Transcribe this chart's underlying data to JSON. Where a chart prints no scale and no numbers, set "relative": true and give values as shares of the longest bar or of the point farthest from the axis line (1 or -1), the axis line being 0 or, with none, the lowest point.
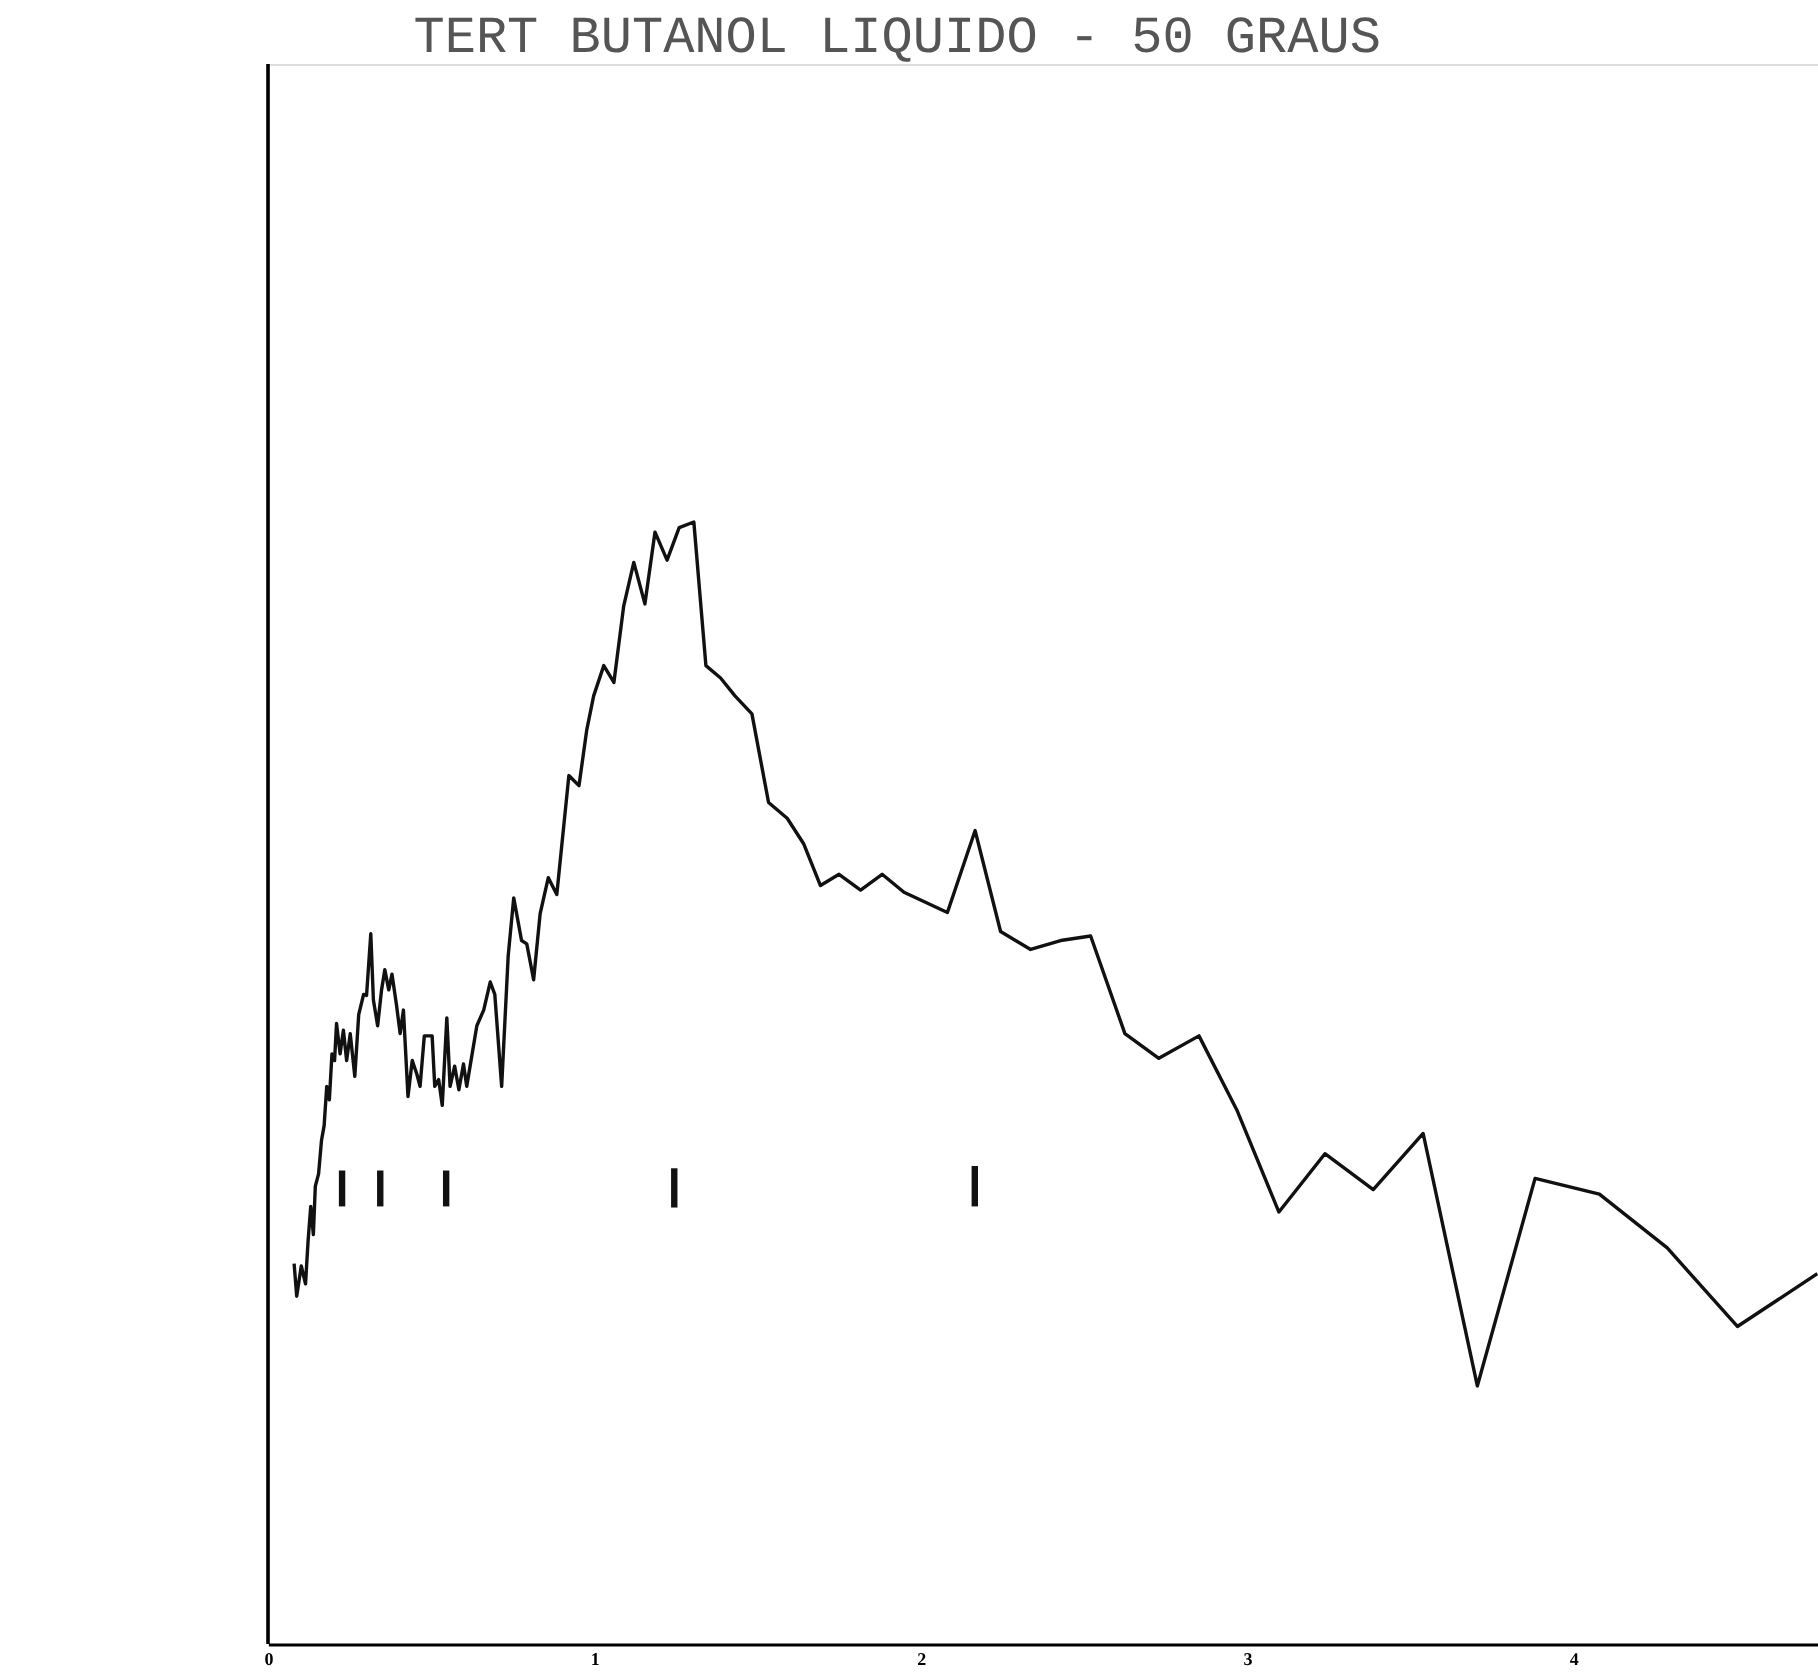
{
  "chart_data": {
    "type": "line",
    "title": "TERT BUTANOL LIQUIDO - 50 GRAUS",
    "relative": true,
    "xlim": [
      0,
      4.75
    ],
    "xticks": [
      0,
      1,
      2,
      3,
      4
    ],
    "marker": "none",
    "line_style": "solid",
    "series": [
      {
        "color": "#111111",
        "x": [
          0.08,
          0.088,
          0.102,
          0.115,
          0.123,
          0.131,
          0.139,
          0.145,
          0.155,
          0.164,
          0.172,
          0.18,
          0.188,
          0.196,
          0.204,
          0.21,
          0.221,
          0.231,
          0.241,
          0.252,
          0.266,
          0.278,
          0.293,
          0.302,
          0.315,
          0.323,
          0.336,
          0.348,
          0.358,
          0.37,
          0.38,
          0.394,
          0.405,
          0.415,
          0.429,
          0.442,
          0.456,
          0.466,
          0.479,
          0.503,
          0.511,
          0.523,
          0.534,
          0.548,
          0.558,
          0.572,
          0.585,
          0.599,
          0.609,
          0.64,
          0.661,
          0.681,
          0.695,
          0.716,
          0.736,
          0.753,
          0.777,
          0.793,
          0.814,
          0.834,
          0.859,
          0.885,
          0.922,
          0.953,
          0.977,
          0.998,
          1.029,
          1.06,
          1.09,
          1.121,
          1.155,
          1.186,
          1.223,
          1.26,
          1.305,
          1.342,
          1.387,
          1.431,
          1.483,
          1.534,
          1.591,
          1.642,
          1.693,
          1.75,
          1.816,
          1.882,
          1.949,
          2.082,
          2.167,
          2.245,
          2.337,
          2.429,
          2.521,
          2.626,
          2.73,
          2.853,
          2.969,
          3.098,
          3.239,
          3.387,
          3.54,
          3.706,
          3.883,
          4.08,
          4.288,
          4.503,
          4.748
        ],
        "values": [
          0.339,
          0.31,
          0.337,
          0.321,
          0.36,
          0.39,
          0.365,
          0.408,
          0.419,
          0.449,
          0.462,
          0.497,
          0.485,
          0.526,
          0.52,
          0.553,
          0.526,
          0.547,
          0.52,
          0.544,
          0.506,
          0.561,
          0.579,
          0.578,
          0.633,
          0.574,
          0.551,
          0.583,
          0.601,
          0.583,
          0.597,
          0.569,
          0.544,
          0.565,
          0.488,
          0.52,
          0.508,
          0.497,
          0.542,
          0.542,
          0.497,
          0.503,
          0.48,
          0.558,
          0.497,
          0.515,
          0.494,
          0.517,
          0.497,
          0.551,
          0.565,
          0.59,
          0.579,
          0.497,
          0.613,
          0.665,
          0.627,
          0.624,
          0.592,
          0.651,
          0.683,
          0.668,
          0.774,
          0.765,
          0.815,
          0.845,
          0.872,
          0.857,
          0.925,
          0.964,
          0.927,
          0.991,
          0.966,
          0.995,
          1.0,
          0.872,
          0.861,
          0.845,
          0.829,
          0.75,
          0.736,
          0.713,
          0.676,
          0.686,
          0.672,
          0.686,
          0.67,
          0.652,
          0.725,
          0.635,
          0.619,
          0.627,
          0.631,
          0.544,
          0.522,
          0.542,
          0.476,
          0.385,
          0.437,
          0.405,
          0.455,
          0.23,
          0.415,
          0.401,
          0.353,
          0.283,
          0.33
        ]
      },
      {
        "color": "#111111",
        "x": [
          0.227,
          0.227
        ],
        "values": [
          0.39,
          0.422
        ]
      },
      {
        "color": "#111111",
        "x": [
          0.344,
          0.344
        ],
        "values": [
          0.39,
          0.422
        ]
      },
      {
        "color": "#111111",
        "x": [
          0.546,
          0.546
        ],
        "values": [
          0.39,
          0.422
        ]
      },
      {
        "color": "#111111",
        "x": [
          1.245,
          1.245
        ],
        "values": [
          0.389,
          0.424
        ]
      },
      {
        "color": "#111111",
        "x": [
          2.166,
          2.166
        ],
        "values": [
          0.39,
          0.426
        ]
      }
    ]
  }
}
